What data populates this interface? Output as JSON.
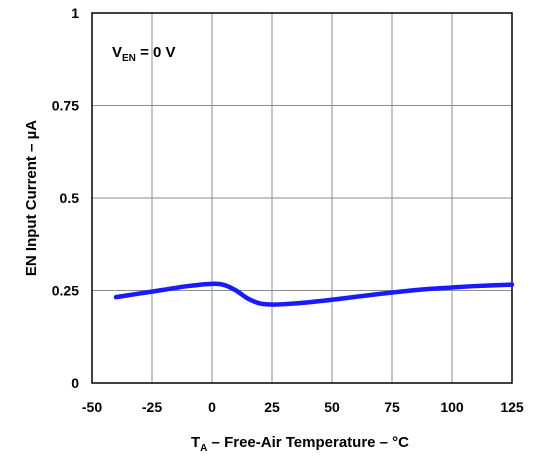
{
  "chart_data": {
    "type": "line",
    "title": "",
    "annotation": {
      "main": "V",
      "sub": "EN",
      "rest": " = 0 V"
    },
    "xlabel": {
      "main": "T",
      "sub": "A",
      "rest": " – Free-Air Temperature – °C"
    },
    "ylabel": "EN Input Current – µA",
    "xlim": [
      -50,
      125
    ],
    "ylim": [
      0,
      1
    ],
    "grid": true,
    "x_ticks": [
      -50,
      -25,
      0,
      25,
      50,
      75,
      100,
      125
    ],
    "y_ticks": [
      0,
      0.25,
      0.5,
      0.75,
      1
    ],
    "x_tick_labels": [
      "-50",
      "-25",
      "0",
      "25",
      "50",
      "75",
      "100",
      "125"
    ],
    "y_tick_labels": [
      "0",
      "0.25",
      "0.5",
      "0.75",
      "1"
    ],
    "series": [
      {
        "color": "#1a1aff",
        "x": [
          -40,
          -30,
          -20,
          -10,
          0,
          5,
          10,
          15,
          20,
          25,
          30,
          40,
          50,
          60,
          70,
          80,
          90,
          100,
          110,
          125
        ],
        "y": [
          0.232,
          0.242,
          0.252,
          0.262,
          0.268,
          0.265,
          0.25,
          0.228,
          0.215,
          0.212,
          0.213,
          0.218,
          0.225,
          0.233,
          0.241,
          0.248,
          0.254,
          0.258,
          0.262,
          0.266
        ]
      }
    ]
  }
}
